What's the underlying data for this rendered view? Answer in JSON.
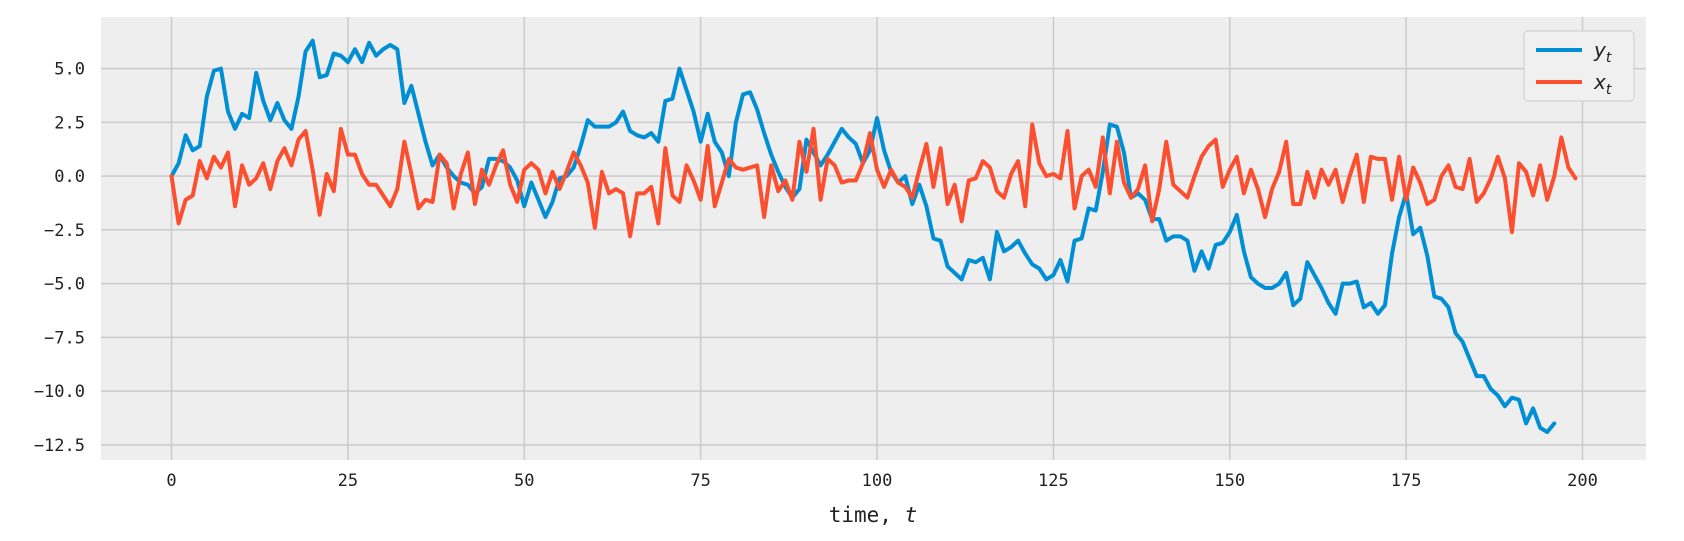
{
  "chart_data": {
    "type": "line",
    "xlabel": "time, ",
    "xlabel_var": "t",
    "xlim": [
      -10,
      209
    ],
    "ylim": [
      -13.2,
      7.4
    ],
    "xticks": [
      0,
      25,
      50,
      75,
      100,
      125,
      150,
      175,
      200
    ],
    "xtick_labels": [
      "0",
      "25",
      "50",
      "75",
      "100",
      "125",
      "150",
      "175",
      "200"
    ],
    "yticks": [
      5.0,
      2.5,
      0.0,
      -2.5,
      -5.0,
      -7.5,
      -10.0,
      -12.5
    ],
    "ytick_labels": [
      "5.0",
      "2.5",
      "0.0",
      "−2.5",
      "−5.0",
      "−7.5",
      "−10.0",
      "−12.5"
    ],
    "grid": true,
    "legend_position": "top-right",
    "background": "#eeeeee",
    "grid_color": "#cbcbcb",
    "series": [
      {
        "name": "y",
        "subscript": "t",
        "color": "#008fd5",
        "x_start": 0,
        "values": [
          0.0,
          0.6,
          1.9,
          1.2,
          1.4,
          3.7,
          4.9,
          5.0,
          3.0,
          2.2,
          2.9,
          2.7,
          4.8,
          3.5,
          2.6,
          3.4,
          2.6,
          2.2,
          3.7,
          5.8,
          6.3,
          4.6,
          4.7,
          5.7,
          5.6,
          5.3,
          5.9,
          5.3,
          6.2,
          5.6,
          5.9,
          6.1,
          5.9,
          3.4,
          4.2,
          2.9,
          1.6,
          0.5,
          1.0,
          0.4,
          0.0,
          -0.3,
          -0.4,
          -0.8,
          -0.5,
          0.8,
          0.8,
          0.7,
          0.4,
          -0.2,
          -1.4,
          -0.3,
          -1.1,
          -1.9,
          -1.2,
          -0.1,
          0.0,
          0.4,
          1.4,
          2.6,
          2.3,
          2.3,
          2.3,
          2.5,
          3.0,
          2.1,
          1.9,
          1.8,
          2.0,
          1.6,
          3.5,
          3.6,
          5.0,
          4.0,
          3.0,
          1.6,
          2.9,
          1.6,
          1.1,
          0.0,
          2.5,
          3.8,
          3.9,
          3.1,
          2.0,
          1.0,
          0.2,
          -0.5,
          -1.0,
          -0.6,
          1.7,
          1.1,
          0.5,
          1.0,
          1.6,
          2.2,
          1.8,
          1.5,
          0.6,
          1.2,
          2.7,
          1.2,
          0.2,
          -0.3,
          0.0,
          -1.3,
          -0.4,
          -1.4,
          -2.9,
          -3.0,
          -4.2,
          -4.5,
          -4.8,
          -3.9,
          -4.0,
          -3.8,
          -4.8,
          -2.6,
          -3.5,
          -3.3,
          -3.0,
          -3.6,
          -4.1,
          -4.3,
          -4.8,
          -4.6,
          -3.9,
          -4.9,
          -3.0,
          -2.9,
          -1.5,
          -1.6,
          0.2,
          2.4,
          2.3,
          1.1,
          -1.0,
          -0.8,
          -1.1,
          -2.0,
          -2.0,
          -3.0,
          -2.8,
          -2.8,
          -3.0,
          -4.4,
          -3.5,
          -4.3,
          -3.2,
          -3.1,
          -2.6,
          -1.8,
          -3.5,
          -4.7,
          -5.0,
          -5.2,
          -5.2,
          -5.0,
          -4.5,
          -6.0,
          -5.7,
          -4.0,
          -4.6,
          -5.2,
          -5.9,
          -6.4,
          -5.0,
          -5.0,
          -4.9,
          -6.1,
          -5.9,
          -6.4,
          -6.0,
          -3.6,
          -1.9,
          -0.8,
          -2.7,
          -2.4,
          -3.7,
          -5.6,
          -5.7,
          -6.1,
          -7.3,
          -7.7,
          -8.5,
          -9.3,
          -9.3,
          -9.9,
          -10.2,
          -10.7,
          -10.3,
          -10.4,
          -11.5,
          -10.8,
          -11.7,
          -11.9,
          -11.5
        ]
      },
      {
        "name": "x",
        "subscript": "t",
        "color": "#fc4f30",
        "x_start": 0,
        "values": [
          0.0,
          -2.2,
          -1.1,
          -0.9,
          0.7,
          -0.1,
          0.9,
          0.4,
          1.1,
          -1.4,
          0.5,
          -0.4,
          -0.1,
          0.6,
          -0.6,
          0.7,
          1.3,
          0.5,
          1.7,
          2.1,
          0.3,
          -1.8,
          0.1,
          -0.7,
          2.2,
          1.0,
          1.0,
          0.1,
          -0.4,
          -0.4,
          -0.9,
          -1.4,
          -0.6,
          1.6,
          0.1,
          -1.5,
          -1.1,
          -1.2,
          1.0,
          0.6,
          -1.5,
          0.1,
          1.1,
          -1.3,
          0.3,
          -0.4,
          0.5,
          1.2,
          -0.4,
          -1.2,
          0.3,
          0.6,
          0.3,
          -0.8,
          0.2,
          -0.6,
          0.2,
          1.1,
          0.5,
          -0.3,
          -2.4,
          0.2,
          -0.8,
          -0.6,
          -0.8,
          -2.8,
          -0.8,
          -0.8,
          -0.5,
          -2.2,
          1.3,
          -0.9,
          -1.2,
          0.5,
          -0.2,
          -1.1,
          1.4,
          -1.4,
          -0.3,
          0.8,
          0.4,
          0.3,
          0.4,
          0.5,
          -1.9,
          0.5,
          -0.7,
          -0.2,
          -1.1,
          1.6,
          0.2,
          2.2,
          -1.1,
          0.8,
          0.5,
          -0.3,
          -0.2,
          -0.2,
          0.6,
          2.0,
          0.3,
          -0.5,
          0.3,
          -0.3,
          -0.5,
          -1.0,
          0.3,
          1.5,
          -0.5,
          1.3,
          -1.3,
          -0.4,
          -2.1,
          -0.2,
          -0.1,
          0.7,
          0.4,
          -0.7,
          -1.0,
          0.1,
          0.7,
          -1.4,
          2.4,
          0.6,
          0.0,
          0.1,
          -0.1,
          2.1,
          -1.5,
          0.0,
          0.3,
          -0.5,
          1.8,
          -0.8,
          1.6,
          -0.3,
          -1.0,
          -0.6,
          0.5,
          -2.1,
          -0.6,
          1.6,
          -0.4,
          -0.7,
          -1.0,
          0.0,
          0.9,
          1.4,
          1.7,
          -0.5,
          0.3,
          0.9,
          -0.8,
          0.3,
          -0.6,
          -1.9,
          -0.6,
          0.2,
          1.6,
          -1.3,
          -1.3,
          0.2,
          -1.0,
          0.3,
          -0.4,
          0.3,
          -1.2,
          0.0,
          1.0,
          -1.2,
          0.9,
          0.8,
          0.8,
          -1.1,
          0.9,
          -1.1,
          0.4,
          -0.3,
          -1.3,
          -1.1,
          0.0,
          0.5,
          -0.5,
          -0.6,
          0.8,
          -1.2,
          -0.8,
          -0.1,
          0.9,
          -0.1,
          -2.6,
          0.6,
          0.2,
          -0.9,
          0.5,
          -1.1,
          0.0,
          1.8,
          0.4,
          -0.1
        ]
      }
    ]
  }
}
